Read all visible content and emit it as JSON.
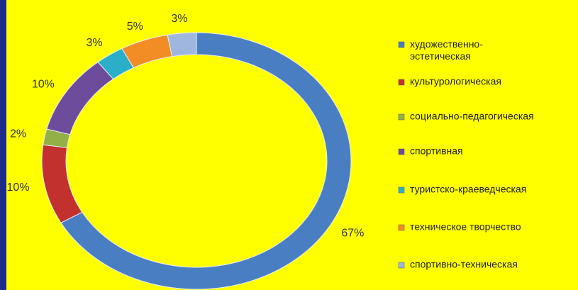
{
  "chart_data": {
    "type": "donut",
    "categories": [
      "художественно-эстетическая",
      "культурологическая",
      "социально-педагогическая",
      "спортивная",
      "туристско-краеведческая",
      "техническое творчество",
      "спортивно-техническая"
    ],
    "values": [
      67,
      10,
      2,
      10,
      3,
      5,
      3
    ],
    "value_labels": [
      "67%",
      "10%",
      "2%",
      "10%",
      "3%",
      "5%",
      "3%"
    ],
    "colors": [
      "#4a7ec2",
      "#c3312f",
      "#93b046",
      "#6e4c9c",
      "#2bafc8",
      "#f28c25",
      "#9fb7df"
    ],
    "legend": "right"
  }
}
